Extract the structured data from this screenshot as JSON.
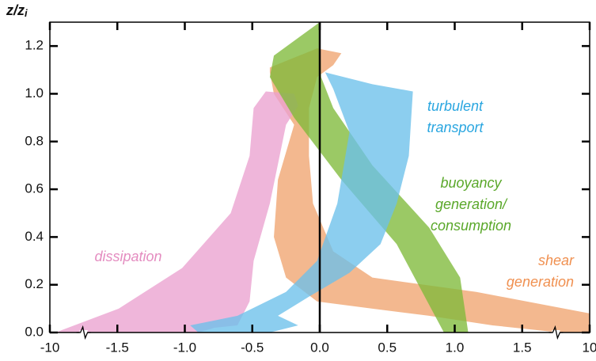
{
  "chart_data": {
    "type": "area-band",
    "ylabel": "z/z",
    "ylabel_sub": "i",
    "xlim": [
      -10,
      10
    ],
    "xticks": [
      -10,
      -1.5,
      {
        "value": -1,
        "label": "-1.0"
      },
      -0.5,
      {
        "value": 0,
        "label": "0.0"
      },
      0.5,
      {
        "value": 1,
        "label": "1.0"
      },
      1.5,
      10
    ],
    "ylim": [
      0,
      1.3
    ],
    "yticks": [
      {
        "value": 0,
        "label": "0.0"
      },
      0.2,
      0.4,
      0.6,
      0.8,
      {
        "value": 1,
        "label": "1.0"
      },
      1.2
    ],
    "series": [
      {
        "name": "shear generation",
        "label": [
          "shear",
          "generation"
        ],
        "color": "#f0a470",
        "text_color": "#f09050",
        "x": [
          -0.37,
          -0.02,
          0.16,
          0.1,
          -0.02,
          -0.08,
          -0.08,
          -0.05,
          0.1,
          0.39,
          1.16,
          10,
          10,
          6.2,
          1.28,
          0.81,
          0.39,
          -0.02,
          -0.25,
          -0.34,
          -0.31,
          -0.19,
          -0.34,
          -0.37
        ],
        "y": [
          1.11,
          1.19,
          1.17,
          1.12,
          1.07,
          0.94,
          0.74,
          0.54,
          0.34,
          0.23,
          0.17,
          0.08,
          0,
          0,
          0.03,
          0.07,
          0.1,
          0.13,
          0.23,
          0.4,
          0.64,
          0.87,
          1.0,
          1.09
        ]
      },
      {
        "name": "dissipation",
        "label": [
          "dissipation"
        ],
        "color": "#eaa2cf",
        "text_color": "#e48cc0",
        "x": [
          -9.3,
          -1.49,
          -1.02,
          -0.66,
          -0.52,
          -0.49,
          -0.4,
          -0.19,
          -0.16,
          -0.25,
          -0.37,
          -0.49,
          -0.52,
          -0.61,
          -0.78,
          -0.9
        ],
        "y": [
          0,
          0.1,
          0.27,
          0.5,
          0.74,
          0.94,
          1.01,
          1.0,
          0.95,
          0.87,
          0.54,
          0.3,
          0.13,
          0.03,
          0.02,
          0
        ]
      },
      {
        "name": "buoyancy generation/ consumption",
        "label": [
          "buoyancy",
          "generation/",
          "consumption"
        ],
        "color": "#7fba3a",
        "text_color": "#5aa82a",
        "x": [
          -0.34,
          0,
          0.01,
          0.1,
          0.39,
          0.81,
          1.04,
          1.1,
          0.92,
          0.57,
          0.16,
          -0.19,
          -0.37
        ],
        "y": [
          1.16,
          1.3,
          1.07,
          0.94,
          0.7,
          0.44,
          0.23,
          0,
          0,
          0.37,
          0.64,
          0.9,
          1.07
        ]
      },
      {
        "name": "turbulent transport",
        "label": [
          "turbulent",
          "transport"
        ],
        "color": "#6cc0ea",
        "text_color": "#2aa6e0",
        "x": [
          0.04,
          0.39,
          0.69,
          0.66,
          0.57,
          0.45,
          0.22,
          -0.08,
          -0.31,
          -0.16,
          -0.37,
          -0.9,
          -0.96,
          -0.61,
          -0.25,
          -0.02,
          0.13,
          0.22,
          0.1
        ],
        "y": [
          1.09,
          1.04,
          1.01,
          0.74,
          0.54,
          0.37,
          0.25,
          0.15,
          0.07,
          0.03,
          0,
          0,
          0.03,
          0.07,
          0.17,
          0.3,
          0.54,
          0.84,
          1.02
        ]
      }
    ]
  }
}
